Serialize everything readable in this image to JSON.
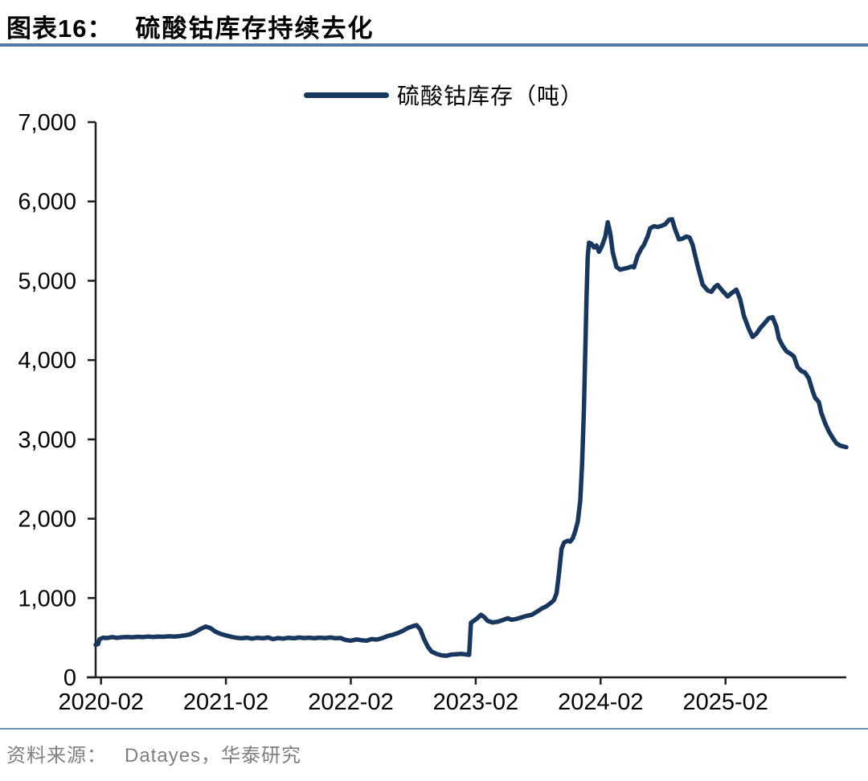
{
  "figure": {
    "label": "图表16：",
    "title": "硫酸钴库存持续去化"
  },
  "source": {
    "label": "资料来源：",
    "text": "Datayes，华泰研究"
  },
  "colors": {
    "line": "#17375E",
    "axis": "#1f1f1f",
    "top_rule": "#4d7aa9",
    "bottom_rule": "#6d8eb5",
    "source_text": "#7f7f7f"
  },
  "chart_data": {
    "type": "line",
    "title": "图表16： 硫酸钴库存持续去化",
    "xlabel": "",
    "ylabel": "",
    "x_unit": "decimal_year",
    "y_unit": "吨",
    "grid": false,
    "legend_position": "top-center",
    "xlim": [
      2020.04,
      2026.05
    ],
    "ylim": [
      0,
      7000
    ],
    "y_ticks": [
      0,
      1000,
      2000,
      3000,
      4000,
      5000,
      6000,
      7000
    ],
    "x_ticks": [
      {
        "t": 2020.083,
        "label": "2020-02"
      },
      {
        "t": 2021.083,
        "label": "2021-02"
      },
      {
        "t": 2022.083,
        "label": "2022-02"
      },
      {
        "t": 2023.083,
        "label": "2023-02"
      },
      {
        "t": 2024.083,
        "label": "2024-02"
      },
      {
        "t": 2025.083,
        "label": "2025-02"
      }
    ],
    "series": [
      {
        "name": "硫酸钴库存（吨）",
        "color": "#17375E",
        "points": [
          [
            2020.04,
            410
          ],
          [
            2020.06,
            420
          ],
          [
            2020.07,
            480
          ],
          [
            2020.1,
            500
          ],
          [
            2020.13,
            495
          ],
          [
            2020.17,
            508
          ],
          [
            2020.21,
            498
          ],
          [
            2020.25,
            505
          ],
          [
            2020.29,
            510
          ],
          [
            2020.33,
            505
          ],
          [
            2020.38,
            512
          ],
          [
            2020.42,
            508
          ],
          [
            2020.46,
            515
          ],
          [
            2020.5,
            510
          ],
          [
            2020.54,
            515
          ],
          [
            2020.58,
            512
          ],
          [
            2020.63,
            518
          ],
          [
            2020.67,
            515
          ],
          [
            2020.71,
            520
          ],
          [
            2020.75,
            528
          ],
          [
            2020.79,
            540
          ],
          [
            2020.83,
            565
          ],
          [
            2020.88,
            610
          ],
          [
            2020.92,
            640
          ],
          [
            2020.96,
            620
          ],
          [
            2021.0,
            575
          ],
          [
            2021.04,
            548
          ],
          [
            2021.08,
            530
          ],
          [
            2021.13,
            510
          ],
          [
            2021.17,
            498
          ],
          [
            2021.21,
            492
          ],
          [
            2021.25,
            500
          ],
          [
            2021.29,
            488
          ],
          [
            2021.33,
            498
          ],
          [
            2021.38,
            492
          ],
          [
            2021.42,
            502
          ],
          [
            2021.46,
            482
          ],
          [
            2021.5,
            495
          ],
          [
            2021.54,
            488
          ],
          [
            2021.58,
            498
          ],
          [
            2021.63,
            492
          ],
          [
            2021.67,
            502
          ],
          [
            2021.71,
            495
          ],
          [
            2021.75,
            500
          ],
          [
            2021.79,
            492
          ],
          [
            2021.83,
            500
          ],
          [
            2021.88,
            495
          ],
          [
            2021.92,
            502
          ],
          [
            2021.96,
            492
          ],
          [
            2022.0,
            496
          ],
          [
            2022.04,
            472
          ],
          [
            2022.08,
            462
          ],
          [
            2022.13,
            478
          ],
          [
            2022.17,
            468
          ],
          [
            2022.21,
            462
          ],
          [
            2022.25,
            482
          ],
          [
            2022.29,
            476
          ],
          [
            2022.33,
            492
          ],
          [
            2022.38,
            522
          ],
          [
            2022.42,
            538
          ],
          [
            2022.46,
            558
          ],
          [
            2022.5,
            588
          ],
          [
            2022.54,
            622
          ],
          [
            2022.58,
            645
          ],
          [
            2022.61,
            658
          ],
          [
            2022.64,
            600
          ],
          [
            2022.67,
            480
          ],
          [
            2022.7,
            385
          ],
          [
            2022.73,
            325
          ],
          [
            2022.77,
            295
          ],
          [
            2022.81,
            278
          ],
          [
            2022.85,
            272
          ],
          [
            2022.89,
            288
          ],
          [
            2022.93,
            292
          ],
          [
            2022.97,
            296
          ],
          [
            2023.0,
            290
          ],
          [
            2023.03,
            284
          ],
          [
            2023.045,
            690
          ],
          [
            2023.07,
            715
          ],
          [
            2023.1,
            752
          ],
          [
            2023.125,
            788
          ],
          [
            2023.15,
            762
          ],
          [
            2023.18,
            710
          ],
          [
            2023.22,
            692
          ],
          [
            2023.26,
            702
          ],
          [
            2023.3,
            722
          ],
          [
            2023.34,
            745
          ],
          [
            2023.37,
            726
          ],
          [
            2023.41,
            736
          ],
          [
            2023.45,
            756
          ],
          [
            2023.49,
            775
          ],
          [
            2023.53,
            788
          ],
          [
            2023.57,
            825
          ],
          [
            2023.61,
            866
          ],
          [
            2023.65,
            898
          ],
          [
            2023.69,
            945
          ],
          [
            2023.71,
            975
          ],
          [
            2023.73,
            1060
          ],
          [
            2023.75,
            1320
          ],
          [
            2023.77,
            1620
          ],
          [
            2023.79,
            1700
          ],
          [
            2023.82,
            1722
          ],
          [
            2023.84,
            1712
          ],
          [
            2023.86,
            1755
          ],
          [
            2023.88,
            1845
          ],
          [
            2023.9,
            1965
          ],
          [
            2023.92,
            2230
          ],
          [
            2023.935,
            2700
          ],
          [
            2023.95,
            3400
          ],
          [
            2023.96,
            4100
          ],
          [
            2023.97,
            4800
          ],
          [
            2023.98,
            5310
          ],
          [
            2023.99,
            5480
          ],
          [
            2024.01,
            5465
          ],
          [
            2024.03,
            5420
          ],
          [
            2024.05,
            5445
          ],
          [
            2024.07,
            5365
          ],
          [
            2024.09,
            5425
          ],
          [
            2024.12,
            5555
          ],
          [
            2024.14,
            5738
          ],
          [
            2024.16,
            5600
          ],
          [
            2024.18,
            5360
          ],
          [
            2024.21,
            5175
          ],
          [
            2024.24,
            5140
          ],
          [
            2024.27,
            5152
          ],
          [
            2024.3,
            5162
          ],
          [
            2024.33,
            5180
          ],
          [
            2024.35,
            5168
          ],
          [
            2024.38,
            5318
          ],
          [
            2024.41,
            5408
          ],
          [
            2024.43,
            5452
          ],
          [
            2024.46,
            5562
          ],
          [
            2024.48,
            5662
          ],
          [
            2024.51,
            5688
          ],
          [
            2024.54,
            5678
          ],
          [
            2024.57,
            5692
          ],
          [
            2024.6,
            5712
          ],
          [
            2024.63,
            5768
          ],
          [
            2024.655,
            5775
          ],
          [
            2024.68,
            5645
          ],
          [
            2024.71,
            5522
          ],
          [
            2024.74,
            5532
          ],
          [
            2024.77,
            5558
          ],
          [
            2024.795,
            5545
          ],
          [
            2024.82,
            5452
          ],
          [
            2024.86,
            5185
          ],
          [
            2024.9,
            4952
          ],
          [
            2024.94,
            4878
          ],
          [
            2024.97,
            4862
          ],
          [
            2025.0,
            4925
          ],
          [
            2025.02,
            4948
          ],
          [
            2025.06,
            4872
          ],
          [
            2025.1,
            4802
          ],
          [
            2025.13,
            4842
          ],
          [
            2025.17,
            4888
          ],
          [
            2025.2,
            4768
          ],
          [
            2025.23,
            4558
          ],
          [
            2025.27,
            4390
          ],
          [
            2025.3,
            4292
          ],
          [
            2025.33,
            4332
          ],
          [
            2025.36,
            4402
          ],
          [
            2025.4,
            4472
          ],
          [
            2025.43,
            4528
          ],
          [
            2025.46,
            4540
          ],
          [
            2025.49,
            4422
          ],
          [
            2025.51,
            4272
          ],
          [
            2025.54,
            4182
          ],
          [
            2025.57,
            4112
          ],
          [
            2025.6,
            4082
          ],
          [
            2025.63,
            4048
          ],
          [
            2025.66,
            3912
          ],
          [
            2025.69,
            3862
          ],
          [
            2025.72,
            3842
          ],
          [
            2025.75,
            3768
          ],
          [
            2025.78,
            3612
          ],
          [
            2025.8,
            3525
          ],
          [
            2025.83,
            3472
          ],
          [
            2025.85,
            3335
          ],
          [
            2025.88,
            3205
          ],
          [
            2025.91,
            3102
          ],
          [
            2025.94,
            3022
          ],
          [
            2025.97,
            2952
          ],
          [
            2026.0,
            2922
          ],
          [
            2026.05,
            2902
          ]
        ]
      }
    ]
  }
}
